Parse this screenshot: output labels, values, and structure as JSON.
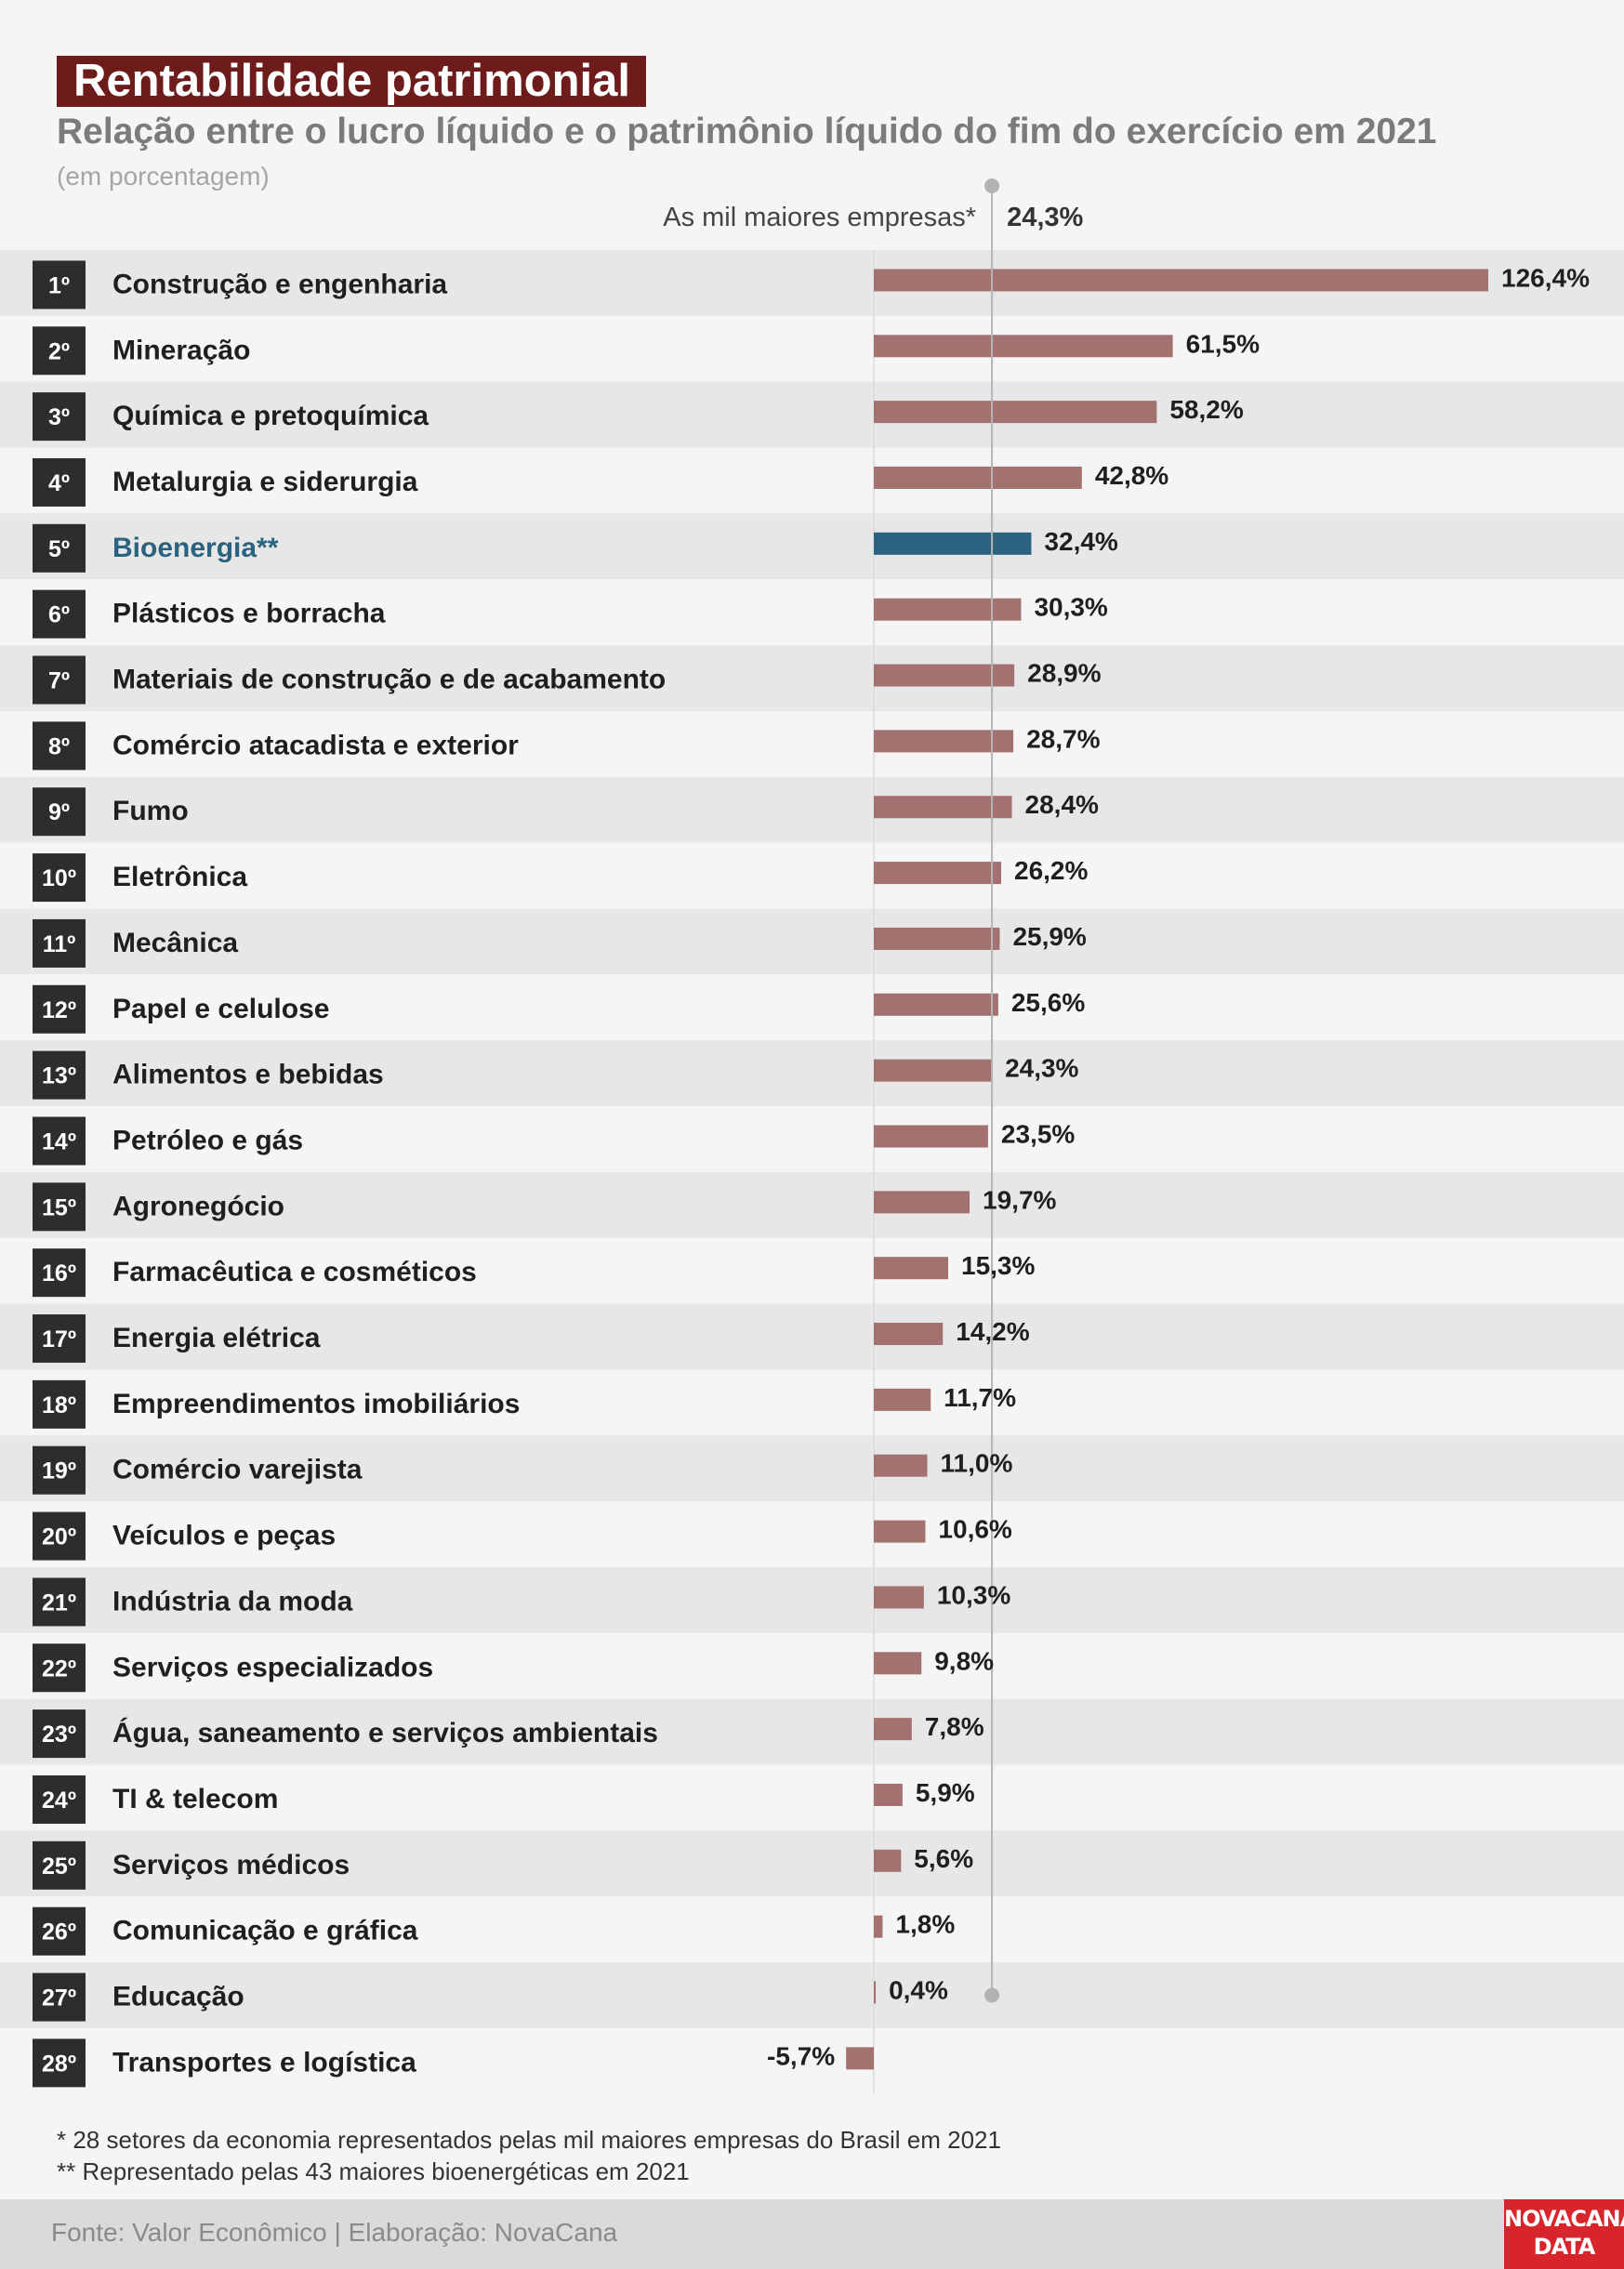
{
  "title": "Rentabilidade patrimonial",
  "subtitle": "Relação entre o lucro líquido e o patrimônio líquido do fim do exercício em 2021",
  "unit_note": "(em porcentagem)",
  "colors": {
    "bar": "#a27170",
    "highlight": "#2a6380",
    "title_bg": "#6e1b1b",
    "rank_box": "#2d2d2d",
    "logo_bg": "#d8252b"
  },
  "chart_data": {
    "type": "bar",
    "orientation": "horizontal",
    "reference": {
      "label": "As mil maiores empresas*",
      "value": 24.3,
      "value_label": "24,3%"
    },
    "xlim": [
      -5.7,
      126.4
    ],
    "highlight_index": 4,
    "rows": [
      {
        "rank": "1º",
        "category": "Construção e engenharia",
        "value": 126.4,
        "label": "126,4%"
      },
      {
        "rank": "2º",
        "category": "Mineração",
        "value": 61.5,
        "label": "61,5%"
      },
      {
        "rank": "3º",
        "category": "Química e pretoquímica",
        "value": 58.2,
        "label": "58,2%"
      },
      {
        "rank": "4º",
        "category": "Metalurgia e siderurgia",
        "value": 42.8,
        "label": "42,8%"
      },
      {
        "rank": "5º",
        "category": "Bioenergia**",
        "value": 32.4,
        "label": "32,4%"
      },
      {
        "rank": "6º",
        "category": "Plásticos e borracha",
        "value": 30.3,
        "label": "30,3%"
      },
      {
        "rank": "7º",
        "category": "Materiais de construção e de acabamento",
        "value": 28.9,
        "label": "28,9%"
      },
      {
        "rank": "8º",
        "category": "Comércio atacadista e exterior",
        "value": 28.7,
        "label": "28,7%"
      },
      {
        "rank": "9º",
        "category": "Fumo",
        "value": 28.4,
        "label": "28,4%"
      },
      {
        "rank": "10º",
        "category": "Eletrônica",
        "value": 26.2,
        "label": "26,2%"
      },
      {
        "rank": "11º",
        "category": "Mecânica",
        "value": 25.9,
        "label": "25,9%"
      },
      {
        "rank": "12º",
        "category": "Papel e celulose",
        "value": 25.6,
        "label": "25,6%"
      },
      {
        "rank": "13º",
        "category": "Alimentos e bebidas",
        "value": 24.3,
        "label": "24,3%"
      },
      {
        "rank": "14º",
        "category": "Petróleo e gás",
        "value": 23.5,
        "label": "23,5%"
      },
      {
        "rank": "15º",
        "category": "Agronegócio",
        "value": 19.7,
        "label": "19,7%"
      },
      {
        "rank": "16º",
        "category": "Farmacêutica e cosméticos",
        "value": 15.3,
        "label": "15,3%"
      },
      {
        "rank": "17º",
        "category": "Energia elétrica",
        "value": 14.2,
        "label": "14,2%"
      },
      {
        "rank": "18º",
        "category": "Empreendimentos imobiliários",
        "value": 11.7,
        "label": "11,7%"
      },
      {
        "rank": "19º",
        "category": "Comércio varejista",
        "value": 11.0,
        "label": "11,0%"
      },
      {
        "rank": "20º",
        "category": "Veículos e peças",
        "value": 10.6,
        "label": "10,6%"
      },
      {
        "rank": "21º",
        "category": "Indústria da moda",
        "value": 10.3,
        "label": "10,3%"
      },
      {
        "rank": "22º",
        "category": "Serviços especializados",
        "value": 9.8,
        "label": "9,8%"
      },
      {
        "rank": "23º",
        "category": "Água, saneamento e serviços ambientais",
        "value": 7.8,
        "label": "7,8%"
      },
      {
        "rank": "24º",
        "category": "TI & telecom",
        "value": 5.9,
        "label": "5,9%"
      },
      {
        "rank": "25º",
        "category": "Serviços médicos",
        "value": 5.6,
        "label": "5,6%"
      },
      {
        "rank": "26º",
        "category": "Comunicação e gráfica",
        "value": 1.8,
        "label": "1,8%"
      },
      {
        "rank": "27º",
        "category": "Educação",
        "value": 0.4,
        "label": "0,4%"
      },
      {
        "rank": "28º",
        "category": "Transportes e logística",
        "value": -5.7,
        "label": "-5,7%"
      }
    ]
  },
  "notes": {
    "note1": "* 28 setores da economia representados pelas mil maiores empresas do Brasil em 2021",
    "note2": "** Representado pelas 43 maiores bioenergéticas em 2021"
  },
  "footer": {
    "source": "Fonte: Valor Econômico | Elaboração: NovaCana",
    "logo_line1": "NOVACANA",
    "logo_line2": "DATA"
  }
}
